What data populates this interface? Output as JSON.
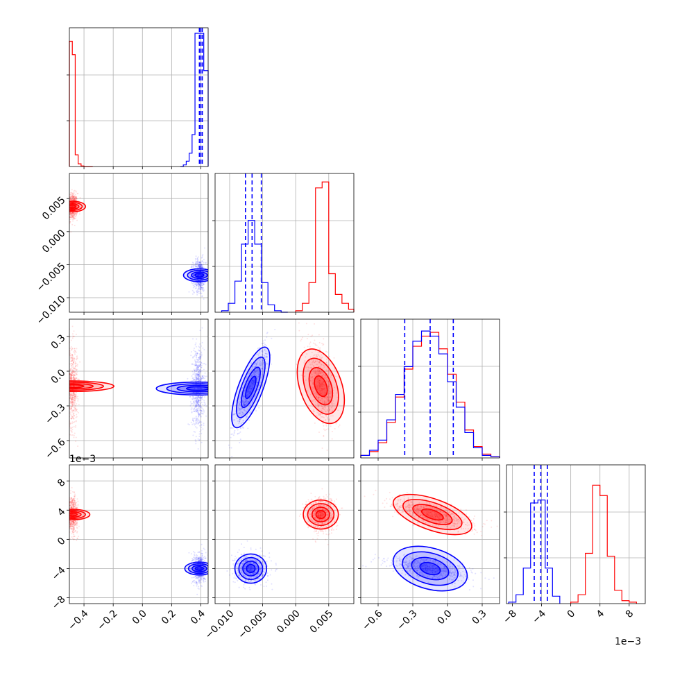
{
  "chart_data": {
    "type": "corner",
    "parameters": 4,
    "series": [
      {
        "name": "",
        "color": "#0000ff"
      },
      {
        "name": "",
        "color": "#ff0000"
      }
    ],
    "axes": [
      {
        "ticks": [
          -0.4,
          -0.2,
          0.0,
          0.2,
          0.4
        ],
        "tick_labels": [
          "−0.4",
          "−0.2",
          "0.0",
          "0.2",
          "0.4"
        ],
        "range": [
          -0.5,
          0.45
        ]
      },
      {
        "ticks": [
          -0.01,
          -0.005,
          0.0,
          0.005
        ],
        "tick_labels": [
          "−0.010",
          "−0.005",
          "0.000",
          "0.005"
        ],
        "range": [
          -0.0122,
          0.0088
        ]
      },
      {
        "ticks": [
          -0.6,
          -0.3,
          0.0,
          0.3
        ],
        "tick_labels": [
          "−0.6",
          "−0.3",
          "0.0",
          "0.3"
        ],
        "range": [
          -0.75,
          0.45
        ]
      },
      {
        "ticks": [
          -8,
          -4,
          0,
          4,
          8
        ],
        "tick_labels": [
          "−8",
          "−4",
          "0",
          "4",
          "8"
        ],
        "range": [
          -8.8,
          10.2
        ],
        "offset_text": "1e−3"
      }
    ],
    "histograms": [
      {
        "param": 0,
        "max": 25,
        "blue": {
          "edges": [
            0.26,
            0.28,
            0.3,
            0.32,
            0.34,
            0.36,
            0.38,
            0.4,
            0.42,
            0.45
          ],
          "counts": [
            0,
            0.3,
            1.0,
            2.5,
            6.0,
            25,
            25,
            25,
            18
          ]
        },
        "red": {
          "edges": [
            -0.5,
            -0.48,
            -0.46,
            -0.44,
            -0.42,
            -0.4,
            -0.38,
            -0.36,
            -0.34
          ],
          "counts": [
            23.5,
            21,
            2.2,
            0.5,
            0.1,
            0,
            0,
            0
          ]
        },
        "blue_quantiles": [
          0.39,
          0.4,
          0.41
        ]
      },
      {
        "param": 1,
        "max": 9,
        "blue": {
          "edges": [
            -0.0112,
            -0.0102,
            -0.0092,
            -0.0082,
            -0.0072,
            -0.0062,
            -0.0052,
            -0.0042,
            -0.0032,
            -0.0022,
            -0.0012
          ],
          "counts": [
            0.1,
            0.6,
            2.1,
            4.6,
            6.2,
            4.6,
            2.0,
            0.5,
            0.1,
            0
          ]
        },
        "red": {
          "edges": [
            0.0,
            0.001,
            0.002,
            0.003,
            0.004,
            0.005,
            0.006,
            0.007,
            0.008,
            0.0088
          ],
          "counts": [
            0.1,
            0.6,
            2.0,
            8.4,
            8.8,
            2.6,
            1.2,
            0.6,
            0.2
          ]
        },
        "blue_quantiles": [
          -0.0076,
          -0.0066,
          -0.0052
        ]
      },
      {
        "param": 2,
        "max": 1.05,
        "blue": {
          "edges": [
            -0.75,
            -0.675,
            -0.6,
            -0.525,
            -0.45,
            -0.375,
            -0.3,
            -0.225,
            -0.15,
            -0.075,
            0.0,
            0.075,
            0.15,
            0.225,
            0.3,
            0.375,
            0.45
          ],
          "counts": [
            0.02,
            0.06,
            0.14,
            0.3,
            0.5,
            0.72,
            0.92,
            1.0,
            0.96,
            0.82,
            0.6,
            0.4,
            0.2,
            0.08,
            0.02,
            0.01
          ]
        },
        "red": {
          "edges": [
            -0.75,
            -0.675,
            -0.6,
            -0.525,
            -0.45,
            -0.375,
            -0.3,
            -0.225,
            -0.15,
            -0.075,
            0.0,
            0.075,
            0.15,
            0.225,
            0.3,
            0.375,
            0.45
          ],
          "counts": [
            0.02,
            0.05,
            0.12,
            0.28,
            0.48,
            0.7,
            0.88,
            0.96,
            0.99,
            0.86,
            0.66,
            0.44,
            0.22,
            0.09,
            0.03,
            0.01
          ]
        },
        "blue_quantiles": [
          -0.37,
          -0.15,
          0.05
        ]
      },
      {
        "param": 3,
        "max": 9,
        "blue": {
          "edges": [
            -8.5,
            -7.5,
            -6.5,
            -5.5,
            -4.5,
            -3.5,
            -2.5,
            -1.5
          ],
          "counts": [
            0.1,
            0.6,
            2.4,
            6.8,
            7.0,
            2.4,
            0.5
          ]
        },
        "red": {
          "edges": [
            0.0,
            1.0,
            2.0,
            3.0,
            4.0,
            5.0,
            6.0,
            7.0,
            8.0,
            9.0
          ],
          "counts": [
            0.1,
            0.6,
            3.4,
            8.0,
            7.3,
            3.2,
            0.9,
            0.2,
            0.1
          ]
        },
        "blue_quantiles": [
          -5.0,
          -4.1,
          -3.2
        ]
      }
    ],
    "scatter": [
      {
        "row": 1,
        "col": 0,
        "blue": {
          "center": [
            0.39,
            -0.0066
          ],
          "spread": [
            0.022,
            0.0012
          ],
          "corr": 0.0
        },
        "red": {
          "center": [
            -0.48,
            0.0038
          ],
          "spread": [
            0.018,
            0.001
          ],
          "corr": 0.0
        }
      },
      {
        "row": 2,
        "col": 0,
        "blue": {
          "center": [
            0.38,
            -0.15
          ],
          "spread": [
            0.022,
            0.18
          ],
          "corr": 0.0
        },
        "red": {
          "center": [
            -0.48,
            -0.13
          ],
          "spread": [
            0.018,
            0.18
          ],
          "corr": 0.0
        }
      },
      {
        "row": 2,
        "col": 1,
        "blue": {
          "center": [
            -0.0068,
            -0.14
          ],
          "spread": [
            0.0012,
            0.18
          ],
          "corr": 0.85
        },
        "red": {
          "center": [
            0.0038,
            -0.13
          ],
          "spread": [
            0.0011,
            0.18
          ],
          "corr": -0.55
        }
      },
      {
        "row": 3,
        "col": 0,
        "blue": {
          "center": [
            0.39,
            -4.0
          ],
          "spread": [
            0.022,
            1.0
          ],
          "corr": 0.0
        },
        "red": {
          "center": [
            -0.48,
            3.4
          ],
          "spread": [
            0.018,
            1.2
          ],
          "corr": 0.0
        }
      },
      {
        "row": 3,
        "col": 1,
        "blue": {
          "center": [
            -0.0068,
            -4.0
          ],
          "spread": [
            0.0012,
            1.0
          ],
          "corr": 0.0
        },
        "red": {
          "center": [
            0.0038,
            3.4
          ],
          "spread": [
            0.0011,
            1.2
          ],
          "corr": 0.0
        }
      },
      {
        "row": 3,
        "col": 2,
        "blue": {
          "center": [
            -0.15,
            -4.0
          ],
          "spread": [
            0.18,
            0.8
          ],
          "corr": -0.55
        },
        "red": {
          "center": [
            -0.13,
            3.4
          ],
          "spread": [
            0.18,
            1.0
          ],
          "corr": -0.75
        }
      }
    ],
    "grid": true,
    "legend": "none"
  }
}
